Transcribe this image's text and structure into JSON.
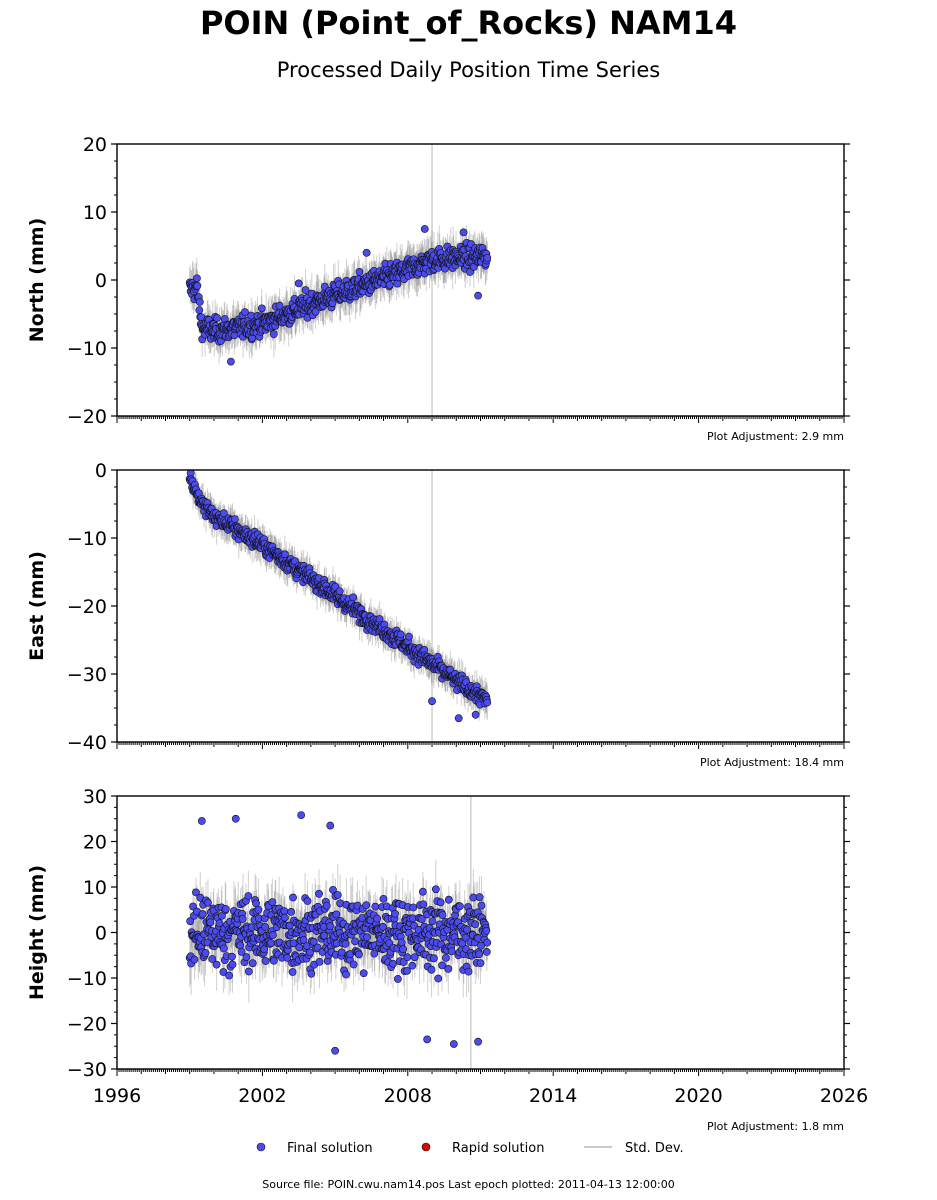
{
  "header": {
    "title": "POIN (Point_of_Rocks) NAM14",
    "subtitle": "Processed Daily Position Time Series"
  },
  "colors": {
    "final": "#4b4bf0",
    "rapid": "#e00000",
    "stddev": "#b8b8b8",
    "marker_edge": "#111111"
  },
  "legend": {
    "final_label": "Final solution",
    "rapid_label": "Rapid solution",
    "stddev_label": "Std. Dev."
  },
  "footer": {
    "source": "Source file: POIN.cwu.nam14.pos  Last epoch plotted: 2011-04-13 12:00:00"
  },
  "chart_data": [
    {
      "type": "scatter",
      "name": "north",
      "ylabel": "North (mm)",
      "xlim": [
        1996,
        2026
      ],
      "ylim": [
        -20,
        20
      ],
      "yticks": [
        -20,
        -10,
        0,
        10,
        20
      ],
      "xticks": [
        1996,
        2002,
        2008,
        2014,
        2020,
        2026
      ],
      "show_xtick_labels": false,
      "adjustment": "Plot Adjustment: 2.9 mm",
      "data_range": [
        1999.0,
        2011.28
      ],
      "trend_x": [
        1999.0,
        1999.3,
        1999.5,
        2000.0,
        2002.0,
        2004.0,
        2006.0,
        2008.0,
        2009.0,
        2011.28
      ],
      "trend_y": [
        -1.5,
        -1.0,
        -7.0,
        -7.5,
        -6.5,
        -3.5,
        -1.0,
        1.5,
        3.0,
        3.5
      ],
      "scatter_mm": 1.2,
      "errorbar_mm": 2.5,
      "outliers": [
        [
          2000.7,
          -12
        ],
        [
          2008.7,
          7.5
        ],
        [
          2003.5,
          -0.5
        ],
        [
          2010.3,
          7
        ],
        [
          2010.9,
          -2.3
        ],
        [
          2006.3,
          4
        ]
      ],
      "vline_x": 2009.0
    },
    {
      "type": "scatter",
      "name": "east",
      "ylabel": "East (mm)",
      "xlim": [
        1996,
        2026
      ],
      "ylim": [
        -40,
        0
      ],
      "yticks": [
        -40,
        -30,
        -20,
        -10,
        0
      ],
      "xticks": [
        1996,
        2002,
        2008,
        2014,
        2020,
        2026
      ],
      "show_xtick_labels": false,
      "adjustment": "Plot Adjustment: 18.4 mm",
      "data_range": [
        1999.0,
        2011.28
      ],
      "trend_x": [
        1999.0,
        1999.5,
        2000.0,
        2002.0,
        2004.0,
        2006.0,
        2008.0,
        2010.0,
        2011.28
      ],
      "trend_y": [
        -1.0,
        -5.0,
        -6.8,
        -11.0,
        -16.0,
        -21.0,
        -26.0,
        -31.0,
        -34.0
      ],
      "scatter_mm": 0.9,
      "errorbar_mm": 2.0,
      "outliers": [
        [
          2009.0,
          -34
        ],
        [
          2010.1,
          -36.5
        ],
        [
          2010.8,
          -36
        ]
      ],
      "vline_x": 2009.0
    },
    {
      "type": "scatter",
      "name": "height",
      "ylabel": "Height (mm)",
      "xlim": [
        1996,
        2026
      ],
      "ylim": [
        -30,
        30
      ],
      "yticks": [
        -30,
        -20,
        -10,
        0,
        10,
        20,
        30
      ],
      "xticks": [
        1996,
        2002,
        2008,
        2014,
        2020,
        2026
      ],
      "xtick_labels": [
        "1996",
        "2002",
        "2008",
        "2014",
        "2020",
        "2026"
      ],
      "show_xtick_labels": true,
      "adjustment": "Plot Adjustment: 1.8 mm",
      "data_range": [
        1999.0,
        2011.28
      ],
      "trend_x": [
        1999.0,
        2011.28
      ],
      "trend_y": [
        0,
        0
      ],
      "scatter_mm": 8.0,
      "errorbar_mm": 5.0,
      "outliers": [
        [
          1999.5,
          24.5
        ],
        [
          2000.9,
          25
        ],
        [
          2003.6,
          25.8
        ],
        [
          2004.8,
          23.5
        ],
        [
          2005.0,
          -26
        ],
        [
          2008.8,
          -23.5
        ],
        [
          2009.9,
          -24.5
        ],
        [
          2010.9,
          -24
        ]
      ],
      "vline_x": 2010.6
    }
  ]
}
